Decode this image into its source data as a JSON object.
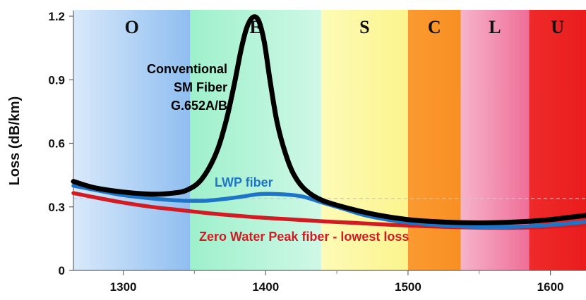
{
  "chart_data": {
    "type": "line",
    "title": "",
    "xlabel": "",
    "ylabel": "Loss (dB/km)",
    "xlim": [
      1265,
      1625
    ],
    "ylim": [
      0,
      1.2
    ],
    "x_ticks": [
      {
        "value": 1300,
        "label": "1300"
      },
      {
        "value": 1400,
        "label": "1400"
      },
      {
        "value": 1500,
        "label": "1500"
      },
      {
        "value": 1600,
        "label": "1600"
      }
    ],
    "x_minor_ticks": [
      1350,
      1450,
      1550
    ],
    "y_ticks": [
      {
        "value": 0,
        "label": "0"
      },
      {
        "value": 0.3,
        "label": "0.3"
      },
      {
        "value": 0.6,
        "label": "0.6"
      },
      {
        "value": 0.9,
        "label": "0.9"
      },
      {
        "value": 1.2,
        "label": "1.2"
      }
    ],
    "reference_line": 0.34,
    "bands": [
      {
        "label": "O",
        "x_start": 1265,
        "x_end": 1347,
        "colors": [
          "#d9e9fb",
          "#8fbef0"
        ]
      },
      {
        "label": "E",
        "x_start": 1347,
        "x_end": 1439,
        "colors": [
          "#9ef0cc",
          "#cff8e6"
        ]
      },
      {
        "label": "S",
        "x_start": 1439,
        "x_end": 1500,
        "colors": [
          "#fdfbb7",
          "#fbf48e"
        ]
      },
      {
        "label": "C",
        "x_start": 1500,
        "x_end": 1537,
        "colors": [
          "#fa9a32",
          "#f98f22"
        ]
      },
      {
        "label": "L",
        "x_start": 1537,
        "x_end": 1585,
        "colors": [
          "#f6b4ca",
          "#ef6e99"
        ]
      },
      {
        "label": "U",
        "x_start": 1585,
        "x_end": 1625,
        "colors": [
          "#ee2a2a",
          "#ea1c1c"
        ]
      }
    ],
    "series": [
      {
        "name": "Conventional SM Fiber G.652A/B",
        "label_lines": [
          "Conventional",
          "SM Fiber",
          "G.652A/B"
        ],
        "color": "#000000",
        "x": [
          1265,
          1280,
          1300,
          1320,
          1335,
          1345,
          1355,
          1365,
          1372,
          1378,
          1383,
          1387,
          1391,
          1395,
          1399,
          1403,
          1408,
          1414,
          1420,
          1428,
          1440,
          1460,
          1480,
          1500,
          1520,
          1540,
          1560,
          1580,
          1600,
          1625
        ],
        "y": [
          0.42,
          0.39,
          0.37,
          0.36,
          0.365,
          0.38,
          0.43,
          0.55,
          0.7,
          0.88,
          1.05,
          1.15,
          1.195,
          1.18,
          1.08,
          0.9,
          0.7,
          0.55,
          0.45,
          0.38,
          0.33,
          0.29,
          0.26,
          0.24,
          0.23,
          0.225,
          0.225,
          0.23,
          0.24,
          0.26
        ]
      },
      {
        "name": "LWP fiber",
        "label_lines": [
          "LWP fiber"
        ],
        "color": "#1e75c8",
        "x": [
          1265,
          1280,
          1300,
          1320,
          1340,
          1360,
          1380,
          1395,
          1410,
          1425,
          1440,
          1455,
          1470,
          1490,
          1510,
          1530,
          1550,
          1570,
          1590,
          1610,
          1625
        ],
        "y": [
          0.4,
          0.38,
          0.355,
          0.34,
          0.33,
          0.33,
          0.345,
          0.36,
          0.36,
          0.35,
          0.32,
          0.29,
          0.26,
          0.235,
          0.22,
          0.21,
          0.205,
          0.205,
          0.21,
          0.22,
          0.23
        ]
      },
      {
        "name": "Zero Water Peak fiber - lowest loss",
        "label_lines": [
          "Zero Water Peak fiber - lowest loss"
        ],
        "color": "#d21c24",
        "x": [
          1265,
          1280,
          1300,
          1320,
          1340,
          1360,
          1380,
          1400,
          1420,
          1440,
          1460,
          1480,
          1500,
          1520,
          1540,
          1560,
          1580,
          1600,
          1625
        ],
        "y": [
          0.365,
          0.345,
          0.32,
          0.3,
          0.285,
          0.27,
          0.258,
          0.248,
          0.24,
          0.232,
          0.225,
          0.218,
          0.212,
          0.207,
          0.203,
          0.201,
          0.202,
          0.206,
          0.215
        ]
      }
    ]
  }
}
